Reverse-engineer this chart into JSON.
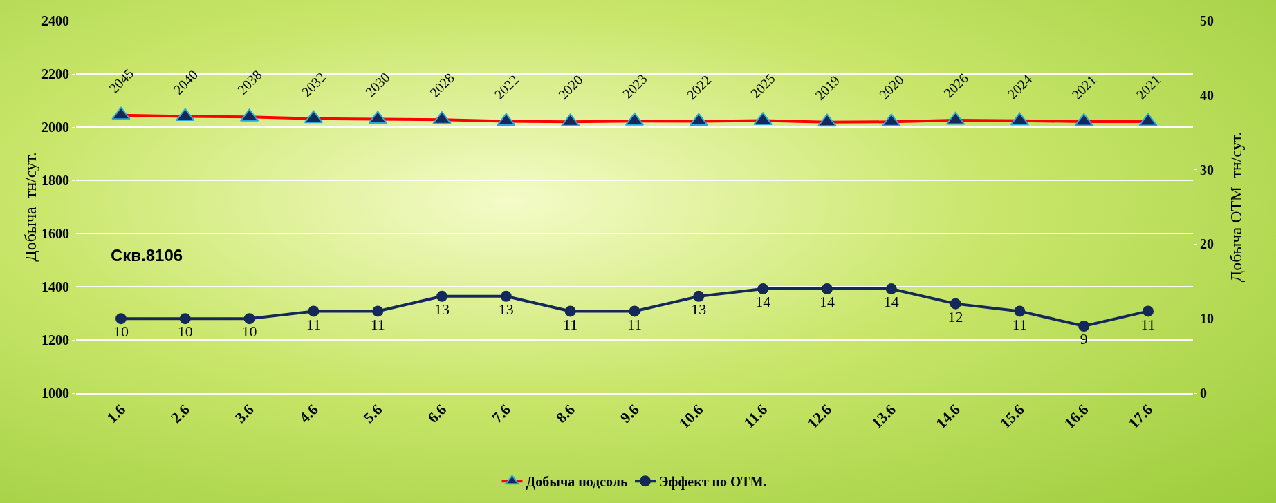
{
  "chart_data": {
    "type": "line",
    "categories": [
      "1.6",
      "2.6",
      "3.6",
      "4.6",
      "5.6",
      "6.6",
      "7.6",
      "8.6",
      "9.6",
      "10.6",
      "11.6",
      "12.6",
      "13.6",
      "14.6",
      "15.6",
      "16.6",
      "17.6"
    ],
    "series": [
      {
        "name": "Добыча подсоль",
        "color": "#ff0000",
        "marker": "triangle",
        "values": [
          2045,
          2040,
          2038,
          2032,
          2030,
          2028,
          2022,
          2020,
          2023,
          2022,
          2025,
          2019,
          2020,
          2026,
          2024,
          2021,
          2021
        ]
      },
      {
        "name": "Эффект по ОТМ.",
        "color": "#14285a",
        "marker": "circle",
        "axis": "y2",
        "values": [
          10,
          10,
          10,
          11,
          11,
          13,
          13,
          11,
          11,
          13,
          14,
          14,
          14,
          12,
          11,
          9,
          11
        ]
      }
    ],
    "ylabel": "Добыча  тн/сут.",
    "y2label": "Добыча ОТМ  тн/сут.",
    "ylim": [
      1000,
      2400
    ],
    "yticks": [
      1000,
      1200,
      1400,
      1600,
      1800,
      2000,
      2200,
      2400
    ],
    "y2lim": [
      0,
      50
    ],
    "y2ticks": [
      0,
      10,
      20,
      30,
      40,
      50
    ],
    "annotations": [
      "Скв.8106"
    ],
    "data_labels": true,
    "grid": "y",
    "legend": "bottom",
    "line_style": "solid"
  }
}
